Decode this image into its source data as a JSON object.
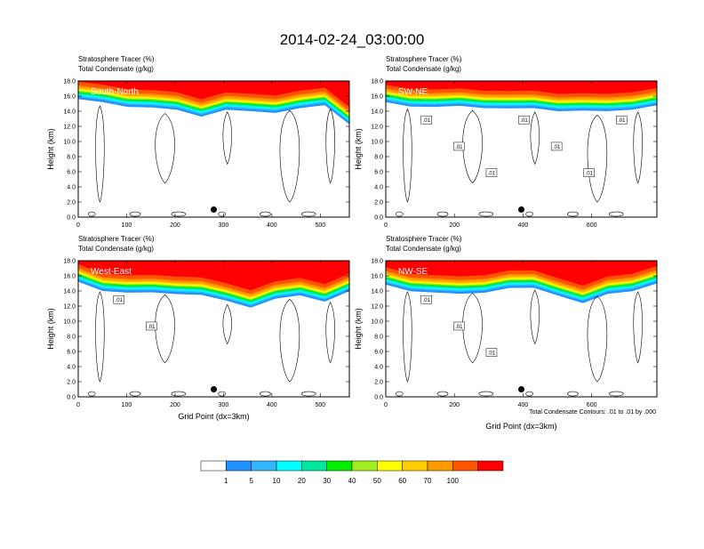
{
  "page": {
    "title": "2014-02-24_03:00:00",
    "footnote": "Total Condensate Contours: .01 to .01 by .000"
  },
  "colors": {
    "bins": [
      "#ffffff",
      "#1e90ff",
      "#33b5ff",
      "#00ffff",
      "#00e6a0",
      "#00ee00",
      "#a0ee20",
      "#ffff00",
      "#ffcc00",
      "#ff9900",
      "#ff5500",
      "#ff0000"
    ],
    "contour": "#000000",
    "frame": "#000000"
  },
  "colorbar": {
    "labels": [
      "1",
      "5",
      "10",
      "20",
      "30",
      "40",
      "50",
      "60",
      "70",
      "100"
    ]
  },
  "chart_data": [
    {
      "type": "heatmap",
      "panel_label": "South-North",
      "subtitle_line1": "Stratosphere Tracer   (%)",
      "subtitle_line2": "Total Condensate   (g/kg)",
      "ylabel": "Height (km)",
      "xlabel": "",
      "yticks": [
        "0.0",
        "2.0",
        "4.0",
        "6.0",
        "8.0",
        "10.0",
        "12.0",
        "14.0",
        "16.0",
        "18.0"
      ],
      "xticks": [
        "0",
        "100",
        "200",
        "300",
        "400",
        "500"
      ],
      "xlim": [
        0,
        560
      ],
      "ylim": [
        0,
        18
      ],
      "tracer_base_km": [
        15.6,
        15.0,
        14.8,
        14.5,
        14.0,
        13.5,
        14.2,
        13.8,
        14.0,
        14.4,
        14.6,
        12.5
      ],
      "dot": {
        "x": 280,
        "y_km": 1.0
      },
      "contour_labels": []
    },
    {
      "type": "heatmap",
      "panel_label": "SW-NE",
      "subtitle_line1": "Stratosphere Tracer   (%)",
      "subtitle_line2": "Total Condensate   (g/kg)",
      "ylabel": "Height (km)",
      "xlabel": "",
      "yticks": [
        "0.0",
        "2.0",
        "4.0",
        "6.0",
        "8.0",
        "10.0",
        "12.0",
        "14.0",
        "16.0",
        "18.0"
      ],
      "xticks": [
        "0",
        "200",
        "400",
        "600"
      ],
      "xlim": [
        0,
        790
      ],
      "ylim": [
        0,
        18
      ],
      "tracer_base_km": [
        15.0,
        14.6,
        14.8,
        14.5,
        14.4,
        14.6,
        14.2,
        14.0,
        14.3,
        13.8,
        14.2,
        15.0
      ],
      "dot": {
        "x": 395,
        "y_km": 1.0
      },
      "contour_labels": [
        ".01",
        ".01",
        ".01",
        ".01",
        ".01",
        ".01",
        ".01"
      ]
    },
    {
      "type": "heatmap",
      "panel_label": "West-East",
      "subtitle_line1": "Stratosphere Tracer   (%)",
      "subtitle_line2": "Total Condensate   (g/kg)",
      "ylabel": "Height (km)",
      "xlabel": "Grid Point (dx=3km)",
      "yticks": [
        "0.0",
        "2.0",
        "4.0",
        "6.0",
        "8.0",
        "10.0",
        "12.0",
        "14.0",
        "16.0",
        "18.0"
      ],
      "xticks": [
        "0",
        "100",
        "200",
        "300",
        "400",
        "500"
      ],
      "xlim": [
        0,
        560
      ],
      "ylim": [
        0,
        18
      ],
      "tracer_base_km": [
        15.0,
        14.2,
        13.8,
        13.6,
        13.8,
        13.5,
        12.5,
        12.0,
        13.0,
        13.2,
        12.8,
        14.0
      ],
      "dot": {
        "x": 280,
        "y_km": 1.0
      },
      "contour_labels": [
        ".01",
        ".01"
      ]
    },
    {
      "type": "heatmap",
      "panel_label": "NW-SE",
      "subtitle_line1": "Stratosphere Tracer   (%)",
      "subtitle_line2": "Total Condensate   (g/kg)",
      "ylabel": "Height (km)",
      "xlabel": "Grid Point (dx=3km)",
      "yticks": [
        "0.0",
        "2.0",
        "4.0",
        "6.0",
        "8.0",
        "10.0",
        "12.0",
        "14.0",
        "16.0",
        "18.0"
      ],
      "xticks": [
        "0",
        "200",
        "400",
        "600"
      ],
      "xlim": [
        0,
        790
      ],
      "ylim": [
        0,
        18
      ],
      "tracer_base_km": [
        14.8,
        14.2,
        13.6,
        13.6,
        14.0,
        14.2,
        14.4,
        13.6,
        12.2,
        13.6,
        14.2,
        14.8
      ],
      "dot": {
        "x": 395,
        "y_km": 1.0
      },
      "contour_labels": [
        ".01",
        ".01",
        ".01"
      ]
    }
  ]
}
